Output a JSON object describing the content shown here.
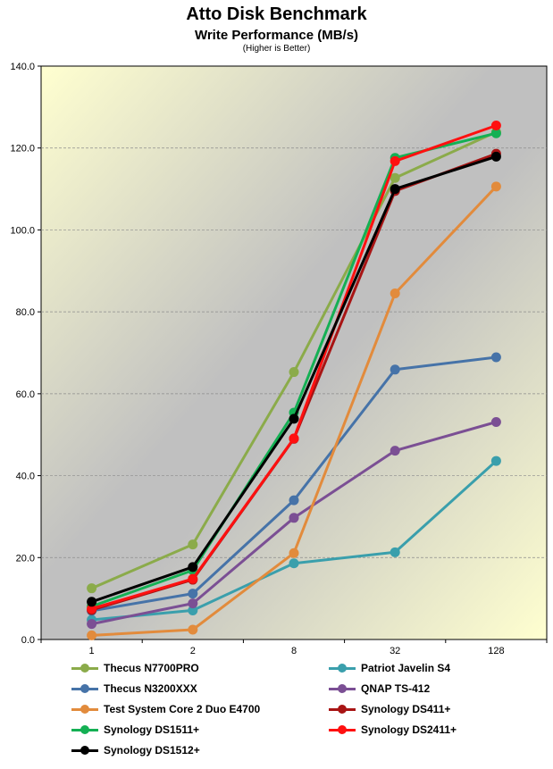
{
  "chart_data": {
    "type": "line",
    "title": "Atto Disk Benchmark",
    "subtitle": "Write Performance (MB/s)",
    "note": "(Higher is Better)",
    "categories": [
      "1",
      "2",
      "8",
      "32",
      "128"
    ],
    "ylim": [
      0,
      140
    ],
    "y_ticks": [
      "0.0",
      "20.0",
      "40.0",
      "60.0",
      "80.0",
      "100.0",
      "120.0",
      "140.0"
    ],
    "grid": true,
    "legend_position": "bottom",
    "series": [
      {
        "name": "Thecus N7700PRO",
        "color": "#8bab4a",
        "values": [
          12.5,
          23.2,
          65.3,
          112.7,
          123.9
        ]
      },
      {
        "name": "Patriot Javelin S4",
        "color": "#3a9fac",
        "values": [
          4.8,
          7.1,
          18.6,
          21.3,
          43.6
        ]
      },
      {
        "name": "Thecus N3200XXX",
        "color": "#4673a8",
        "values": [
          7.0,
          11.2,
          34.0,
          65.9,
          68.9
        ]
      },
      {
        "name": "QNAP TS-412",
        "color": "#7b4f94",
        "values": [
          3.8,
          8.8,
          29.7,
          46.1,
          53.1
        ]
      },
      {
        "name": "Test System Core 2 Duo E4700",
        "color": "#e28b3c",
        "values": [
          1.0,
          2.4,
          21.1,
          84.5,
          110.6
        ]
      },
      {
        "name": "Synology DS411+",
        "color": "#a81414",
        "values": [
          7.2,
          14.6,
          49.0,
          109.5,
          118.6
        ]
      },
      {
        "name": "Synology DS1511+",
        "color": "#14b054",
        "values": [
          8.1,
          16.9,
          55.4,
          117.6,
          123.6
        ]
      },
      {
        "name": "Synology DS2411+",
        "color": "#ff1010",
        "values": [
          7.5,
          14.8,
          49.1,
          116.8,
          125.5
        ]
      },
      {
        "name": "Synology DS1512+",
        "color": "#000000",
        "values": [
          9.2,
          17.7,
          53.9,
          110.0,
          117.9
        ]
      }
    ]
  }
}
